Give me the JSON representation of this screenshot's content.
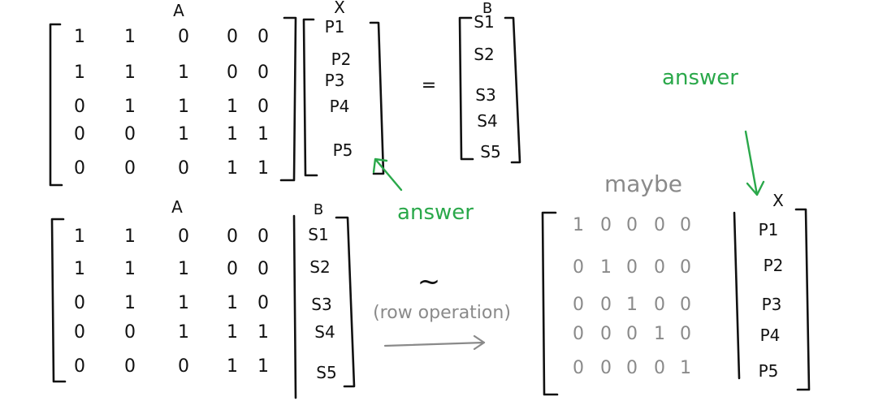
{
  "top_equation": {
    "matrix_label": "A",
    "vector_label": "X",
    "result_label": "B",
    "equals": "=",
    "matrix_rows": [
      [
        "1",
        "1",
        "0",
        "0",
        "0"
      ],
      [
        "1",
        "1",
        "1",
        "0",
        "0"
      ],
      [
        "0",
        "1",
        "1",
        "1",
        "0"
      ],
      [
        "0",
        "0",
        "1",
        "1",
        "1"
      ],
      [
        "0",
        "0",
        "0",
        "1",
        "1"
      ]
    ],
    "x_entries": [
      "P1",
      "P2",
      "P3",
      "P4",
      "P5"
    ],
    "b_entries": [
      "S1",
      "S2",
      "S3",
      "S4",
      "S5"
    ],
    "annotation": "answer"
  },
  "bottom_augmented": {
    "matrix_label": "A",
    "result_label": "B",
    "matrix_rows": [
      [
        "1",
        "1",
        "0",
        "0",
        "0"
      ],
      [
        "1",
        "1",
        "1",
        "0",
        "0"
      ],
      [
        "0",
        "1",
        "1",
        "1",
        "0"
      ],
      [
        "0",
        "0",
        "1",
        "1",
        "1"
      ],
      [
        "0",
        "0",
        "0",
        "1",
        "1"
      ]
    ],
    "b_entries": [
      "S1",
      "S2",
      "S3",
      "S4",
      "S5"
    ]
  },
  "row_operation": {
    "tilde": "~",
    "label": "(row operation)"
  },
  "result": {
    "maybe_label": "maybe",
    "vector_label": "X",
    "identity_rows": [
      [
        "1",
        "0",
        "0",
        "0",
        "0"
      ],
      [
        "0",
        "1",
        "0",
        "0",
        "0"
      ],
      [
        "0",
        "0",
        "1",
        "0",
        "0"
      ],
      [
        "0",
        "0",
        "0",
        "1",
        "0"
      ],
      [
        "0",
        "0",
        "0",
        "0",
        "1"
      ]
    ],
    "x_entries": [
      "P1",
      "P2",
      "P3",
      "P4",
      "P5"
    ],
    "annotation": "answer"
  }
}
